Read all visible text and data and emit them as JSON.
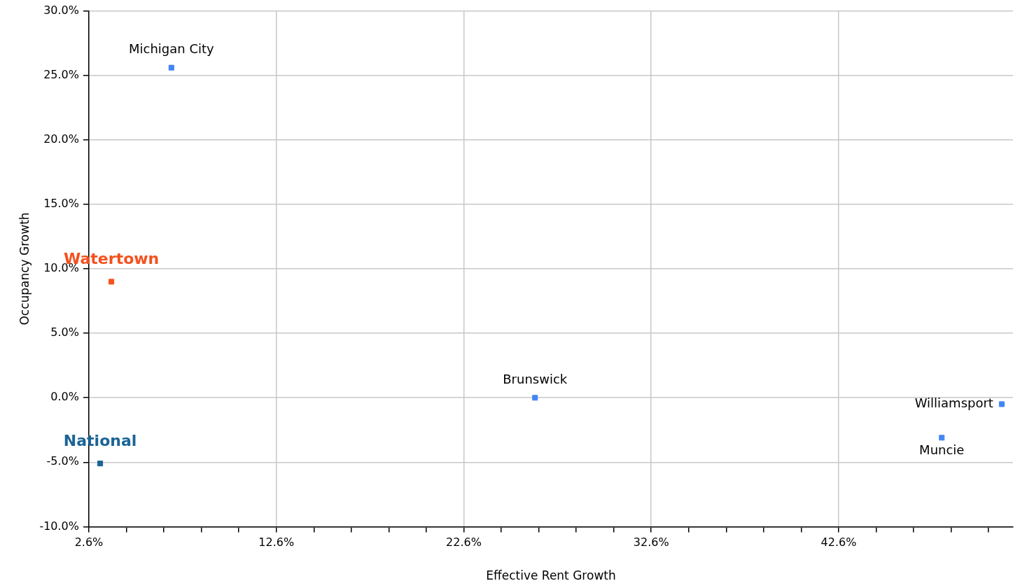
{
  "chart_data": {
    "type": "scatter",
    "xlabel": "Effective Rent Growth",
    "ylabel": "Occupancy Growth",
    "series": [
      {
        "name": "Michigan City",
        "color": "#4285f4",
        "x": [
          7.0
        ],
        "values": [
          25.6
        ]
      },
      {
        "name": "Watertown",
        "color": "#f4511e",
        "x": [
          3.8
        ],
        "values": [
          9.0
        ]
      },
      {
        "name": "National",
        "color": "#1a6496",
        "x": [
          3.2
        ],
        "values": [
          -5.1
        ]
      },
      {
        "name": "Brunswick",
        "color": "#4285f4",
        "x": [
          26.4
        ],
        "values": [
          0.0
        ]
      },
      {
        "name": "Williamsport",
        "color": "#4285f4",
        "x": [
          51.3
        ],
        "values": [
          -0.5
        ]
      },
      {
        "name": "Muncie",
        "color": "#4285f4",
        "x": [
          48.1
        ],
        "values": [
          -3.1
        ]
      }
    ],
    "xlim": [
      2.6,
      51.9
    ],
    "xticks": [
      {
        "value": 2.6,
        "label": "2.6%"
      },
      {
        "value": 4.6,
        "label": null
      },
      {
        "value": 6.6,
        "label": null
      },
      {
        "value": 8.6,
        "label": null
      },
      {
        "value": 10.6,
        "label": null
      },
      {
        "value": 12.6,
        "label": "12.6%"
      },
      {
        "value": 14.6,
        "label": null
      },
      {
        "value": 16.6,
        "label": null
      },
      {
        "value": 18.6,
        "label": null
      },
      {
        "value": 20.6,
        "label": null
      },
      {
        "value": 22.6,
        "label": "22.6%"
      },
      {
        "value": 24.6,
        "label": null
      },
      {
        "value": 26.6,
        "label": null
      },
      {
        "value": 28.6,
        "label": null
      },
      {
        "value": 30.6,
        "label": null
      },
      {
        "value": 32.6,
        "label": "32.6%"
      },
      {
        "value": 34.6,
        "label": null
      },
      {
        "value": 36.6,
        "label": null
      },
      {
        "value": 38.6,
        "label": null
      },
      {
        "value": 40.6,
        "label": null
      },
      {
        "value": 42.6,
        "label": "42.6%"
      },
      {
        "value": 44.6,
        "label": null
      },
      {
        "value": 46.6,
        "label": null
      },
      {
        "value": 48.6,
        "label": null
      },
      {
        "value": 50.6,
        "label": null
      }
    ],
    "ylim": [
      -10,
      30
    ],
    "yticks": [
      {
        "value": -10,
        "label": "-10.0%"
      },
      {
        "value": -5,
        "label": "-5.0%"
      },
      {
        "value": 0,
        "label": "0.0%"
      },
      {
        "value": 5,
        "label": "5.0%"
      },
      {
        "value": 10,
        "label": "10.0%"
      },
      {
        "value": 15,
        "label": "15.0%"
      },
      {
        "value": 20,
        "label": "20.0%"
      },
      {
        "value": 25,
        "label": "25.0%"
      },
      {
        "value": 30,
        "label": "30.0%"
      }
    ],
    "grid": true,
    "legend": false,
    "marker": "square"
  }
}
